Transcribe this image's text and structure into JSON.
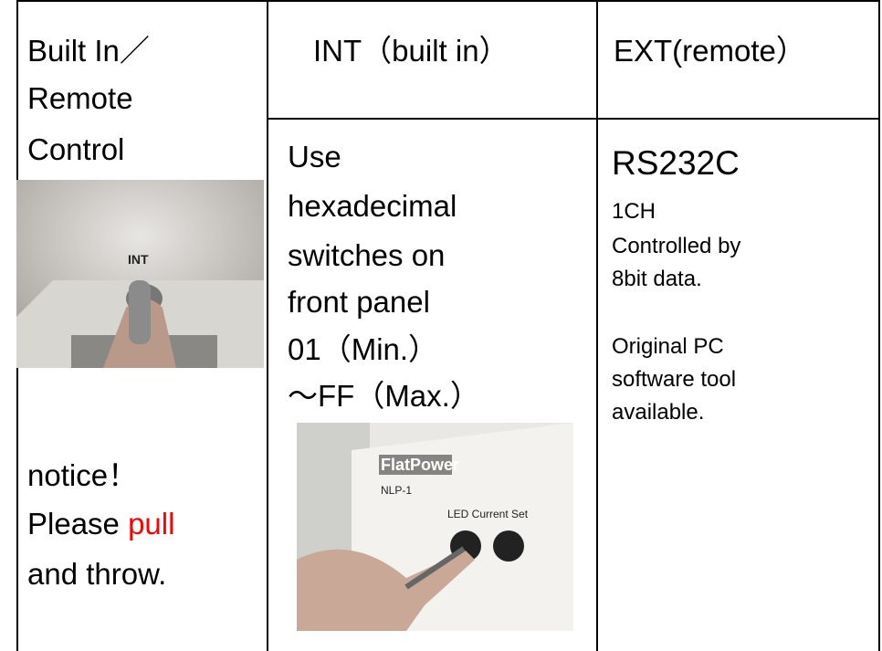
{
  "col1": {
    "heading": [
      "Built In／",
      "Remote",
      "Control"
    ],
    "notice": [
      "notice！",
      {
        "before": "Please ",
        "highlight": "pull"
      },
      "and throw."
    ]
  },
  "col2": {
    "header": "INT（built in）",
    "body": [
      "Use",
      "hexadecimal",
      "switches on",
      "front panel",
      "01（Min.）",
      "～FF（Max.）"
    ]
  },
  "col3": {
    "header": "EXT(remote）",
    "body": [
      "RS232C",
      "1CH",
      "Controlled by",
      "8bit data.",
      "Original PC",
      "software tool",
      "available."
    ]
  }
}
